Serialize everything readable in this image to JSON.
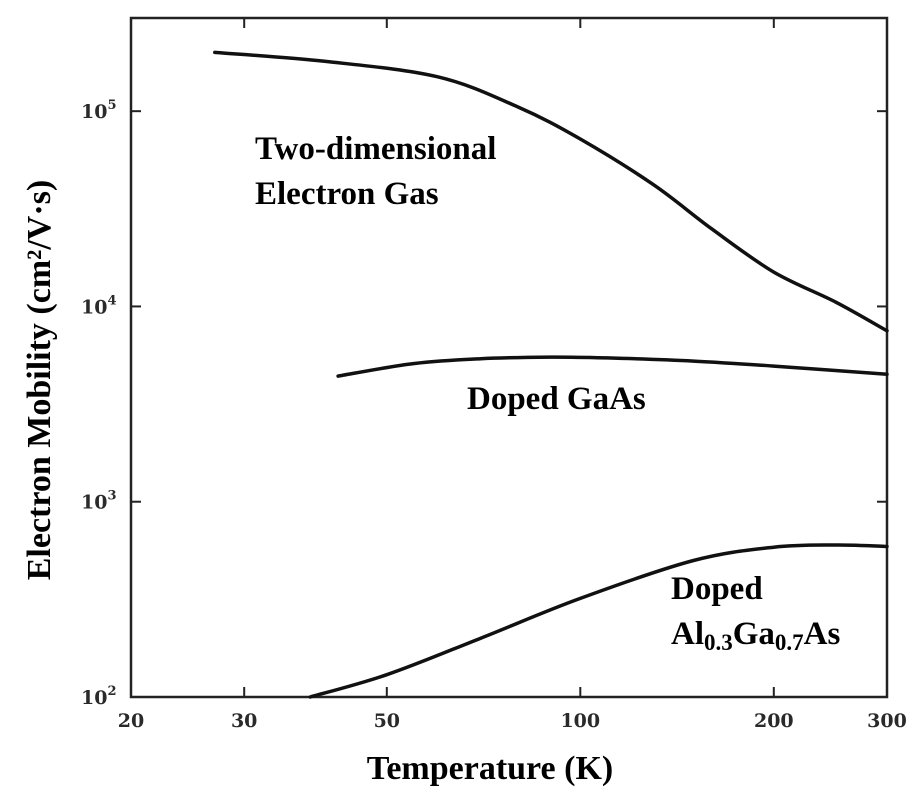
{
  "chart_data": {
    "type": "line",
    "title": "",
    "xlabel": "Temperature (K)",
    "ylabel": "Electron Mobility (cm²/V·s)",
    "x_scale": "log",
    "y_scale": "log",
    "xlim": [
      20,
      300
    ],
    "ylim": [
      100,
      300000
    ],
    "x_ticks": [
      20,
      30,
      50,
      100,
      200,
      300
    ],
    "x_tick_labels": [
      "20",
      "30",
      "50",
      "100",
      "200",
      "300"
    ],
    "y_ticks": [
      {
        "value": 100,
        "base": "10",
        "exp": "2"
      },
      {
        "value": 1000,
        "base": "10",
        "exp": "3"
      },
      {
        "value": 10000,
        "base": "10",
        "exp": "4"
      },
      {
        "value": 100000,
        "base": "10",
        "exp": "5"
      }
    ],
    "grid": false,
    "legend": "none",
    "series": [
      {
        "label_lines": [
          "Two-dimensional",
          "Electron Gas"
        ],
        "x": [
          27,
          40,
          60,
          80,
          100,
          130,
          160,
          200,
          250,
          300
        ],
        "y": [
          200000,
          180000,
          150000,
          105000,
          72000,
          42000,
          25000,
          15000,
          10500,
          7500
        ]
      },
      {
        "label_lines": [
          "Doped GaAs"
        ],
        "x": [
          42,
          55,
          70,
          90,
          110,
          150,
          200,
          300
        ],
        "y": [
          4400,
          5100,
          5400,
          5500,
          5450,
          5250,
          4950,
          4500
        ]
      },
      {
        "label_lines": [
          "Doped",
          "Al₀.₃Ga₀.₇As"
        ],
        "label_rich": {
          "pre": "Al",
          "sub1": "0.3",
          "mid": "Ga",
          "sub2": "0.7",
          "post": "As"
        },
        "x": [
          38,
          50,
          70,
          100,
          150,
          200,
          250,
          300
        ],
        "y": [
          100,
          130,
          200,
          320,
          500,
          585,
          600,
          590
        ]
      }
    ]
  }
}
